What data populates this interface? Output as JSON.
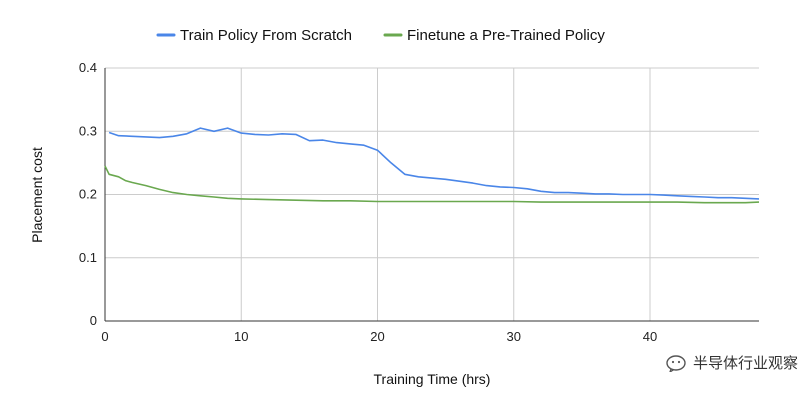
{
  "chart_data": {
    "type": "line",
    "xlabel": "Training Time (hrs)",
    "ylabel": "Placement cost",
    "xlim": [
      0,
      48
    ],
    "ylim": [
      0,
      0.4
    ],
    "x_ticks": [
      "0",
      "10",
      "20",
      "30",
      "40"
    ],
    "x_tick_values": [
      0,
      10,
      20,
      30,
      40
    ],
    "y_ticks": [
      "0",
      "0.1",
      "0.2",
      "0.3",
      "0.4"
    ],
    "y_tick_values": [
      0,
      0.1,
      0.2,
      0.3,
      0.4
    ],
    "grid": true,
    "legend_position": "top",
    "series": [
      {
        "name": "Train Policy From Scratch",
        "color": "#4a86e8",
        "points": [
          [
            0.3,
            0.298
          ],
          [
            1,
            0.293
          ],
          [
            2,
            0.292
          ],
          [
            3,
            0.291
          ],
          [
            4,
            0.29
          ],
          [
            5,
            0.292
          ],
          [
            6,
            0.296
          ],
          [
            7,
            0.305
          ],
          [
            8,
            0.3
          ],
          [
            9,
            0.305
          ],
          [
            10,
            0.297
          ],
          [
            11,
            0.295
          ],
          [
            12,
            0.294
          ],
          [
            13,
            0.296
          ],
          [
            14,
            0.295
          ],
          [
            15,
            0.285
          ],
          [
            16,
            0.286
          ],
          [
            17,
            0.282
          ],
          [
            18,
            0.28
          ],
          [
            19,
            0.278
          ],
          [
            20,
            0.27
          ],
          [
            21,
            0.25
          ],
          [
            22,
            0.232
          ],
          [
            23,
            0.228
          ],
          [
            24,
            0.226
          ],
          [
            25,
            0.224
          ],
          [
            26,
            0.221
          ],
          [
            27,
            0.218
          ],
          [
            28,
            0.214
          ],
          [
            29,
            0.212
          ],
          [
            30,
            0.211
          ],
          [
            31,
            0.209
          ],
          [
            32,
            0.205
          ],
          [
            33,
            0.203
          ],
          [
            34,
            0.203
          ],
          [
            35,
            0.202
          ],
          [
            36,
            0.201
          ],
          [
            37,
            0.201
          ],
          [
            38,
            0.2
          ],
          [
            39,
            0.2
          ],
          [
            40,
            0.2
          ],
          [
            41,
            0.199
          ],
          [
            42,
            0.198
          ],
          [
            43,
            0.197
          ],
          [
            44,
            0.196
          ],
          [
            45,
            0.195
          ],
          [
            46,
            0.195
          ],
          [
            47,
            0.194
          ],
          [
            48,
            0.193
          ]
        ]
      },
      {
        "name": "Finetune a Pre-Trained Policy",
        "color": "#6aa84f",
        "points": [
          [
            0,
            0.245
          ],
          [
            0.3,
            0.232
          ],
          [
            1,
            0.228
          ],
          [
            1.5,
            0.222
          ],
          [
            2,
            0.219
          ],
          [
            3,
            0.214
          ],
          [
            4,
            0.208
          ],
          [
            5,
            0.203
          ],
          [
            6,
            0.2
          ],
          [
            7,
            0.198
          ],
          [
            8,
            0.196
          ],
          [
            9,
            0.194
          ],
          [
            10,
            0.193
          ],
          [
            12,
            0.192
          ],
          [
            14,
            0.191
          ],
          [
            16,
            0.19
          ],
          [
            18,
            0.19
          ],
          [
            20,
            0.189
          ],
          [
            22,
            0.189
          ],
          [
            24,
            0.189
          ],
          [
            26,
            0.189
          ],
          [
            28,
            0.189
          ],
          [
            30,
            0.189
          ],
          [
            32,
            0.188
          ],
          [
            34,
            0.188
          ],
          [
            36,
            0.188
          ],
          [
            38,
            0.188
          ],
          [
            40,
            0.188
          ],
          [
            42,
            0.188
          ],
          [
            44,
            0.187
          ],
          [
            46,
            0.187
          ],
          [
            47,
            0.187
          ],
          [
            48,
            0.188
          ]
        ]
      }
    ]
  },
  "watermark": {
    "text": "半导体行业观察",
    "icon": "wechat-bubble-icon"
  }
}
